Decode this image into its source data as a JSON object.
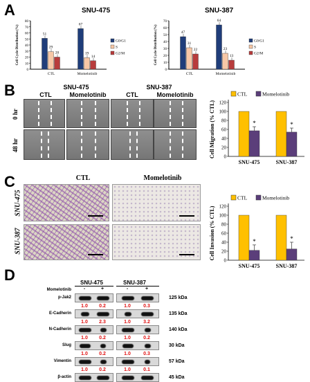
{
  "panels": {
    "a": {
      "letter": "A",
      "legend": [
        "G0/G1",
        "S",
        "G2/M"
      ],
      "colors": [
        "#1f3d7a",
        "#f7c7a6",
        "#b83c3c"
      ],
      "ylabel": "Cell Cycle Distribution (%)",
      "charts": [
        {
          "title": "SNU-475",
          "groups": [
            "CTL",
            "Momelotinib"
          ],
          "values": [
            [
              51,
              29,
              20
            ],
            [
              67,
              19,
              14
            ]
          ],
          "yticks": [
            "0",
            "10",
            "20",
            "30",
            "40",
            "50",
            "60",
            "70",
            "80"
          ]
        },
        {
          "title": "SNU-387",
          "groups": [
            "CTL",
            "Momelotinib"
          ],
          "values": [
            [
              47,
              31,
              22
            ],
            [
              64,
              23,
              13
            ]
          ],
          "yticks": [
            "0",
            "10",
            "20",
            "30",
            "40",
            "50",
            "60",
            "70"
          ]
        }
      ]
    },
    "b": {
      "letter": "B",
      "cell_lines": [
        "SNU-475",
        "SNU-387"
      ],
      "conditions": [
        "CTL",
        "Momelotinib"
      ],
      "timepoints": [
        "0 hr",
        "48 hr"
      ],
      "chart": {
        "ylabel": "Cell Migration (% CTL)",
        "legend": [
          "CTL",
          "Momelotinib"
        ],
        "categories": [
          "SNU-475",
          "SNU-387"
        ],
        "yticks": [
          "0",
          "20",
          "40",
          "60",
          "80",
          "100",
          "120"
        ],
        "star": "*"
      }
    },
    "c": {
      "letter": "C",
      "conditions": [
        "CTL",
        "Momelotinib"
      ],
      "cell_lines": [
        "SNU-475",
        "SNU-387"
      ],
      "chart": {
        "ylabel": "Cell Invasion (% CTL)",
        "legend": [
          "CTL",
          "Momelotinib"
        ],
        "categories": [
          "SNU-475",
          "SNU-387"
        ],
        "yticks": [
          "0",
          "20",
          "40",
          "60",
          "80",
          "100",
          "120"
        ],
        "star": "*"
      }
    },
    "d": {
      "letter": "D",
      "cell_lines": [
        "SNU-475",
        "SNU-387"
      ],
      "treat_label": "Momelotinib",
      "treat_signs": [
        "-",
        "+",
        "-",
        "+"
      ],
      "rows": [
        {
          "name": "p-Jak2",
          "kda": "125 kDa",
          "quant": [
            "1.0",
            "0.2",
            "1.0",
            "0.3"
          ]
        },
        {
          "name": "E-Cadherin",
          "kda": "135 kDa",
          "quant": [
            "1.0",
            "2.3",
            "1.0",
            "3.2"
          ]
        },
        {
          "name": "N-Cadherin",
          "kda": "140 kDa",
          "quant": [
            "1.0",
            "0.2",
            "1.0",
            "0.2"
          ]
        },
        {
          "name": "Slug",
          "kda": "30 kDa",
          "quant": [
            "1.0",
            "0.2",
            "1.0",
            "0.3"
          ]
        },
        {
          "name": "Vimentin",
          "kda": "57 kDa",
          "quant": [
            "1.0",
            "0.2",
            "1.0",
            "0.1"
          ]
        },
        {
          "name": "β-actin",
          "kda": "45 kDa",
          "quant": []
        }
      ]
    }
  },
  "chart_data": [
    {
      "type": "bar",
      "title": "SNU-475",
      "categories": [
        "CTL",
        "Momelotinib"
      ],
      "ylabel": "Cell Cycle Distribution (%)",
      "ylim": [
        0,
        80
      ],
      "series": [
        {
          "name": "G0/G1",
          "values": [
            51,
            67
          ]
        },
        {
          "name": "S",
          "values": [
            29,
            19
          ]
        },
        {
          "name": "G2/M",
          "values": [
            20,
            14
          ]
        }
      ]
    },
    {
      "type": "bar",
      "title": "SNU-387",
      "categories": [
        "CTL",
        "Momelotinib"
      ],
      "ylabel": "Cell Cycle Distribution (%)",
      "ylim": [
        0,
        70
      ],
      "series": [
        {
          "name": "G0/G1",
          "values": [
            47,
            64
          ]
        },
        {
          "name": "S",
          "values": [
            31,
            23
          ]
        },
        {
          "name": "G2/M",
          "values": [
            22,
            13
          ]
        }
      ]
    },
    {
      "type": "bar",
      "categories": [
        "SNU-475",
        "SNU-387"
      ],
      "ylabel": "Cell Migration (% CTL)",
      "ylim": [
        0,
        120
      ],
      "series": [
        {
          "name": "CTL",
          "values": [
            100,
            100
          ]
        },
        {
          "name": "Momelotinib",
          "values": [
            57,
            54
          ]
        }
      ]
    },
    {
      "type": "bar",
      "categories": [
        "SNU-475",
        "SNU-387"
      ],
      "ylabel": "Cell Invasion (% CTL)",
      "ylim": [
        0,
        120
      ],
      "series": [
        {
          "name": "CTL",
          "values": [
            100,
            100
          ]
        },
        {
          "name": "Momelotinib",
          "values": [
            22,
            25
          ]
        }
      ]
    }
  ]
}
